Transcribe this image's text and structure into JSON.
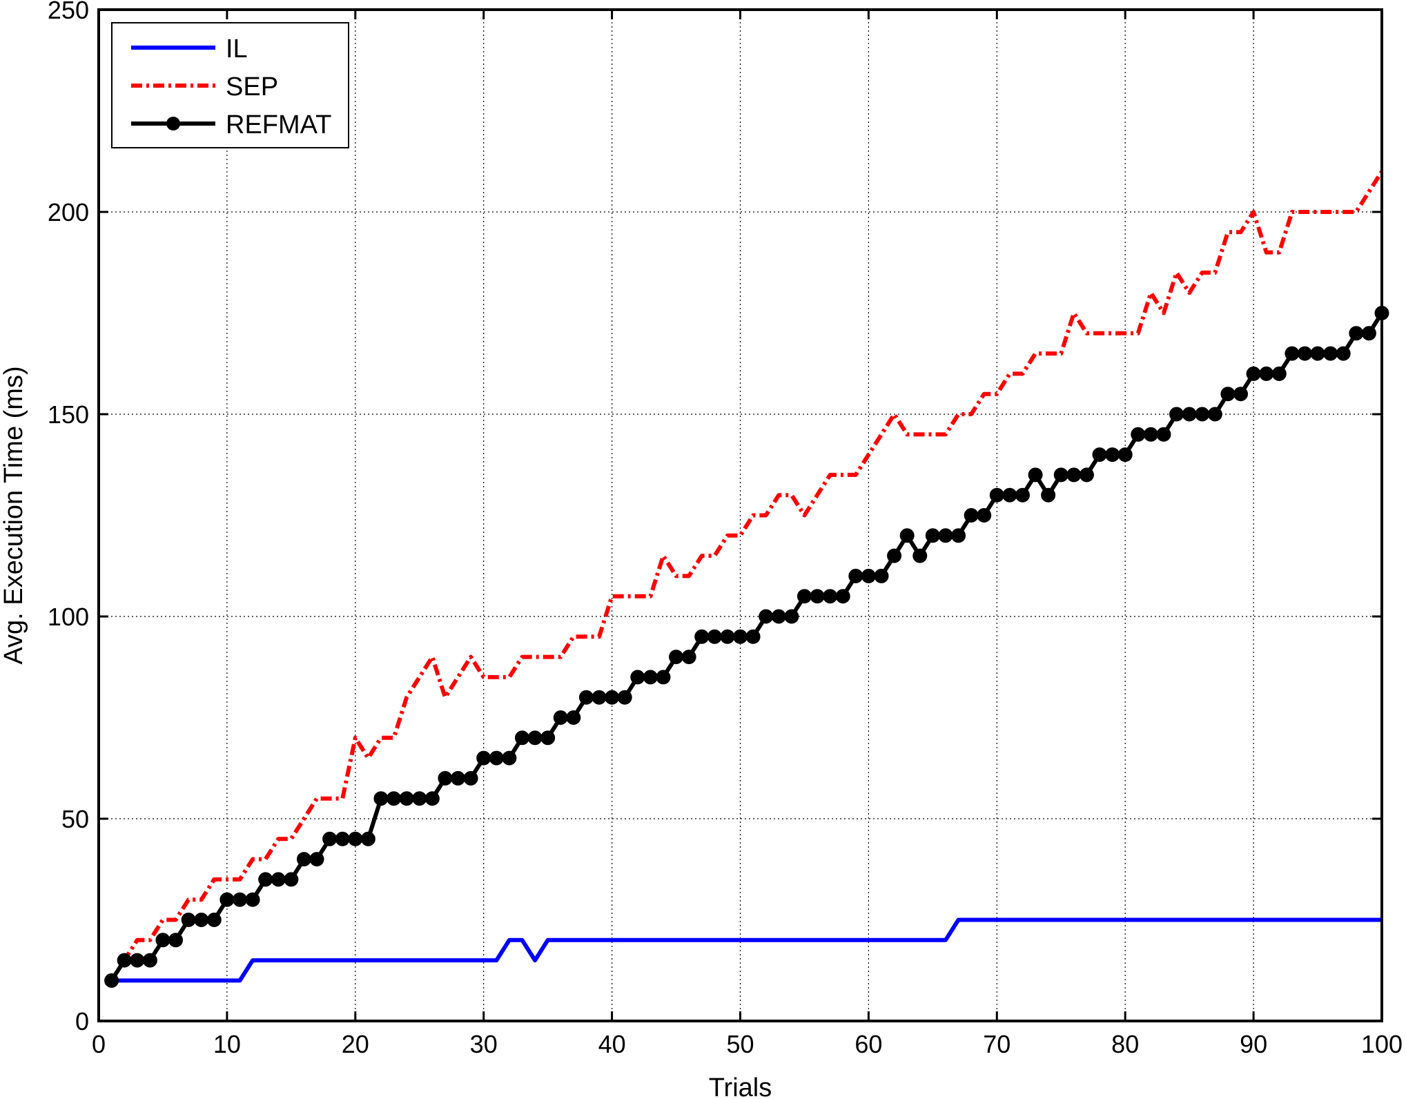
{
  "chart_data": {
    "type": "line",
    "title": "",
    "xlabel": "Trials",
    "ylabel": "Avg. Execution Time (ms)",
    "xlim": [
      0,
      100
    ],
    "ylim": [
      0,
      250
    ],
    "xticks": [
      0,
      10,
      20,
      30,
      40,
      50,
      60,
      70,
      80,
      90,
      100
    ],
    "yticks": [
      0,
      50,
      100,
      150,
      200,
      250
    ],
    "grid": true,
    "legend_position": "top-left",
    "x": [
      1,
      2,
      3,
      4,
      5,
      6,
      7,
      8,
      9,
      10,
      11,
      12,
      13,
      14,
      15,
      16,
      17,
      18,
      19,
      20,
      21,
      22,
      23,
      24,
      25,
      26,
      27,
      28,
      29,
      30,
      31,
      32,
      33,
      34,
      35,
      36,
      37,
      38,
      39,
      40,
      41,
      42,
      43,
      44,
      45,
      46,
      47,
      48,
      49,
      50,
      51,
      52,
      53,
      54,
      55,
      56,
      57,
      58,
      59,
      60,
      61,
      62,
      63,
      64,
      65,
      66,
      67,
      68,
      69,
      70,
      71,
      72,
      73,
      74,
      75,
      76,
      77,
      78,
      79,
      80,
      81,
      82,
      83,
      84,
      85,
      86,
      87,
      88,
      89,
      90,
      91,
      92,
      93,
      94,
      95,
      96,
      97,
      98,
      99,
      100
    ],
    "series": [
      {
        "name": "IL",
        "color": "#0000ff",
        "style": "solid",
        "marker": "none",
        "values": [
          10,
          10,
          10,
          10,
          10,
          10,
          10,
          10,
          10,
          10,
          10,
          15,
          15,
          15,
          15,
          15,
          15,
          15,
          15,
          15,
          15,
          15,
          15,
          15,
          15,
          15,
          15,
          15,
          15,
          15,
          15,
          20,
          20,
          15,
          20,
          20,
          20,
          20,
          20,
          20,
          20,
          20,
          20,
          20,
          20,
          20,
          20,
          20,
          20,
          20,
          20,
          20,
          20,
          20,
          20,
          20,
          20,
          20,
          20,
          20,
          20,
          20,
          20,
          20,
          20,
          20,
          25,
          25,
          25,
          25,
          25,
          25,
          25,
          25,
          25,
          25,
          25,
          25,
          25,
          25,
          25,
          25,
          25,
          25,
          25,
          25,
          25,
          25,
          25,
          25,
          25,
          25,
          25,
          25,
          25,
          25,
          25,
          25,
          25,
          25
        ]
      },
      {
        "name": "SEP",
        "color": "#ff0000",
        "style": "dashdot",
        "marker": "none",
        "values": [
          10,
          15,
          20,
          20,
          25,
          25,
          30,
          30,
          35,
          35,
          35,
          40,
          40,
          45,
          45,
          50,
          55,
          55,
          55,
          70,
          65,
          70,
          70,
          80,
          85,
          90,
          80,
          85,
          90,
          85,
          85,
          85,
          90,
          90,
          90,
          90,
          95,
          95,
          95,
          105,
          105,
          105,
          105,
          115,
          110,
          110,
          115,
          115,
          120,
          120,
          125,
          125,
          130,
          130,
          125,
          130,
          135,
          135,
          135,
          140,
          145,
          150,
          145,
          145,
          145,
          145,
          150,
          150,
          155,
          155,
          160,
          160,
          165,
          165,
          165,
          175,
          170,
          170,
          170,
          170,
          170,
          180,
          175,
          185,
          180,
          185,
          185,
          195,
          195,
          200,
          190,
          190,
          200,
          200,
          200,
          200,
          200,
          200,
          205,
          210
        ]
      },
      {
        "name": "REFMAT",
        "color": "#000000",
        "style": "solid",
        "marker": "circle",
        "values": [
          10,
          15,
          15,
          15,
          20,
          20,
          25,
          25,
          25,
          30,
          30,
          30,
          35,
          35,
          35,
          40,
          40,
          45,
          45,
          45,
          45,
          55,
          55,
          55,
          55,
          55,
          60,
          60,
          60,
          65,
          65,
          65,
          70,
          70,
          70,
          75,
          75,
          80,
          80,
          80,
          80,
          85,
          85,
          85,
          90,
          90,
          95,
          95,
          95,
          95,
          95,
          100,
          100,
          100,
          105,
          105,
          105,
          105,
          110,
          110,
          110,
          115,
          120,
          115,
          120,
          120,
          120,
          125,
          125,
          130,
          130,
          130,
          135,
          130,
          135,
          135,
          135,
          140,
          140,
          140,
          145,
          145,
          145,
          150,
          150,
          150,
          150,
          155,
          155,
          160,
          160,
          160,
          165,
          165,
          165,
          165,
          165,
          170,
          170,
          175
        ]
      }
    ]
  }
}
